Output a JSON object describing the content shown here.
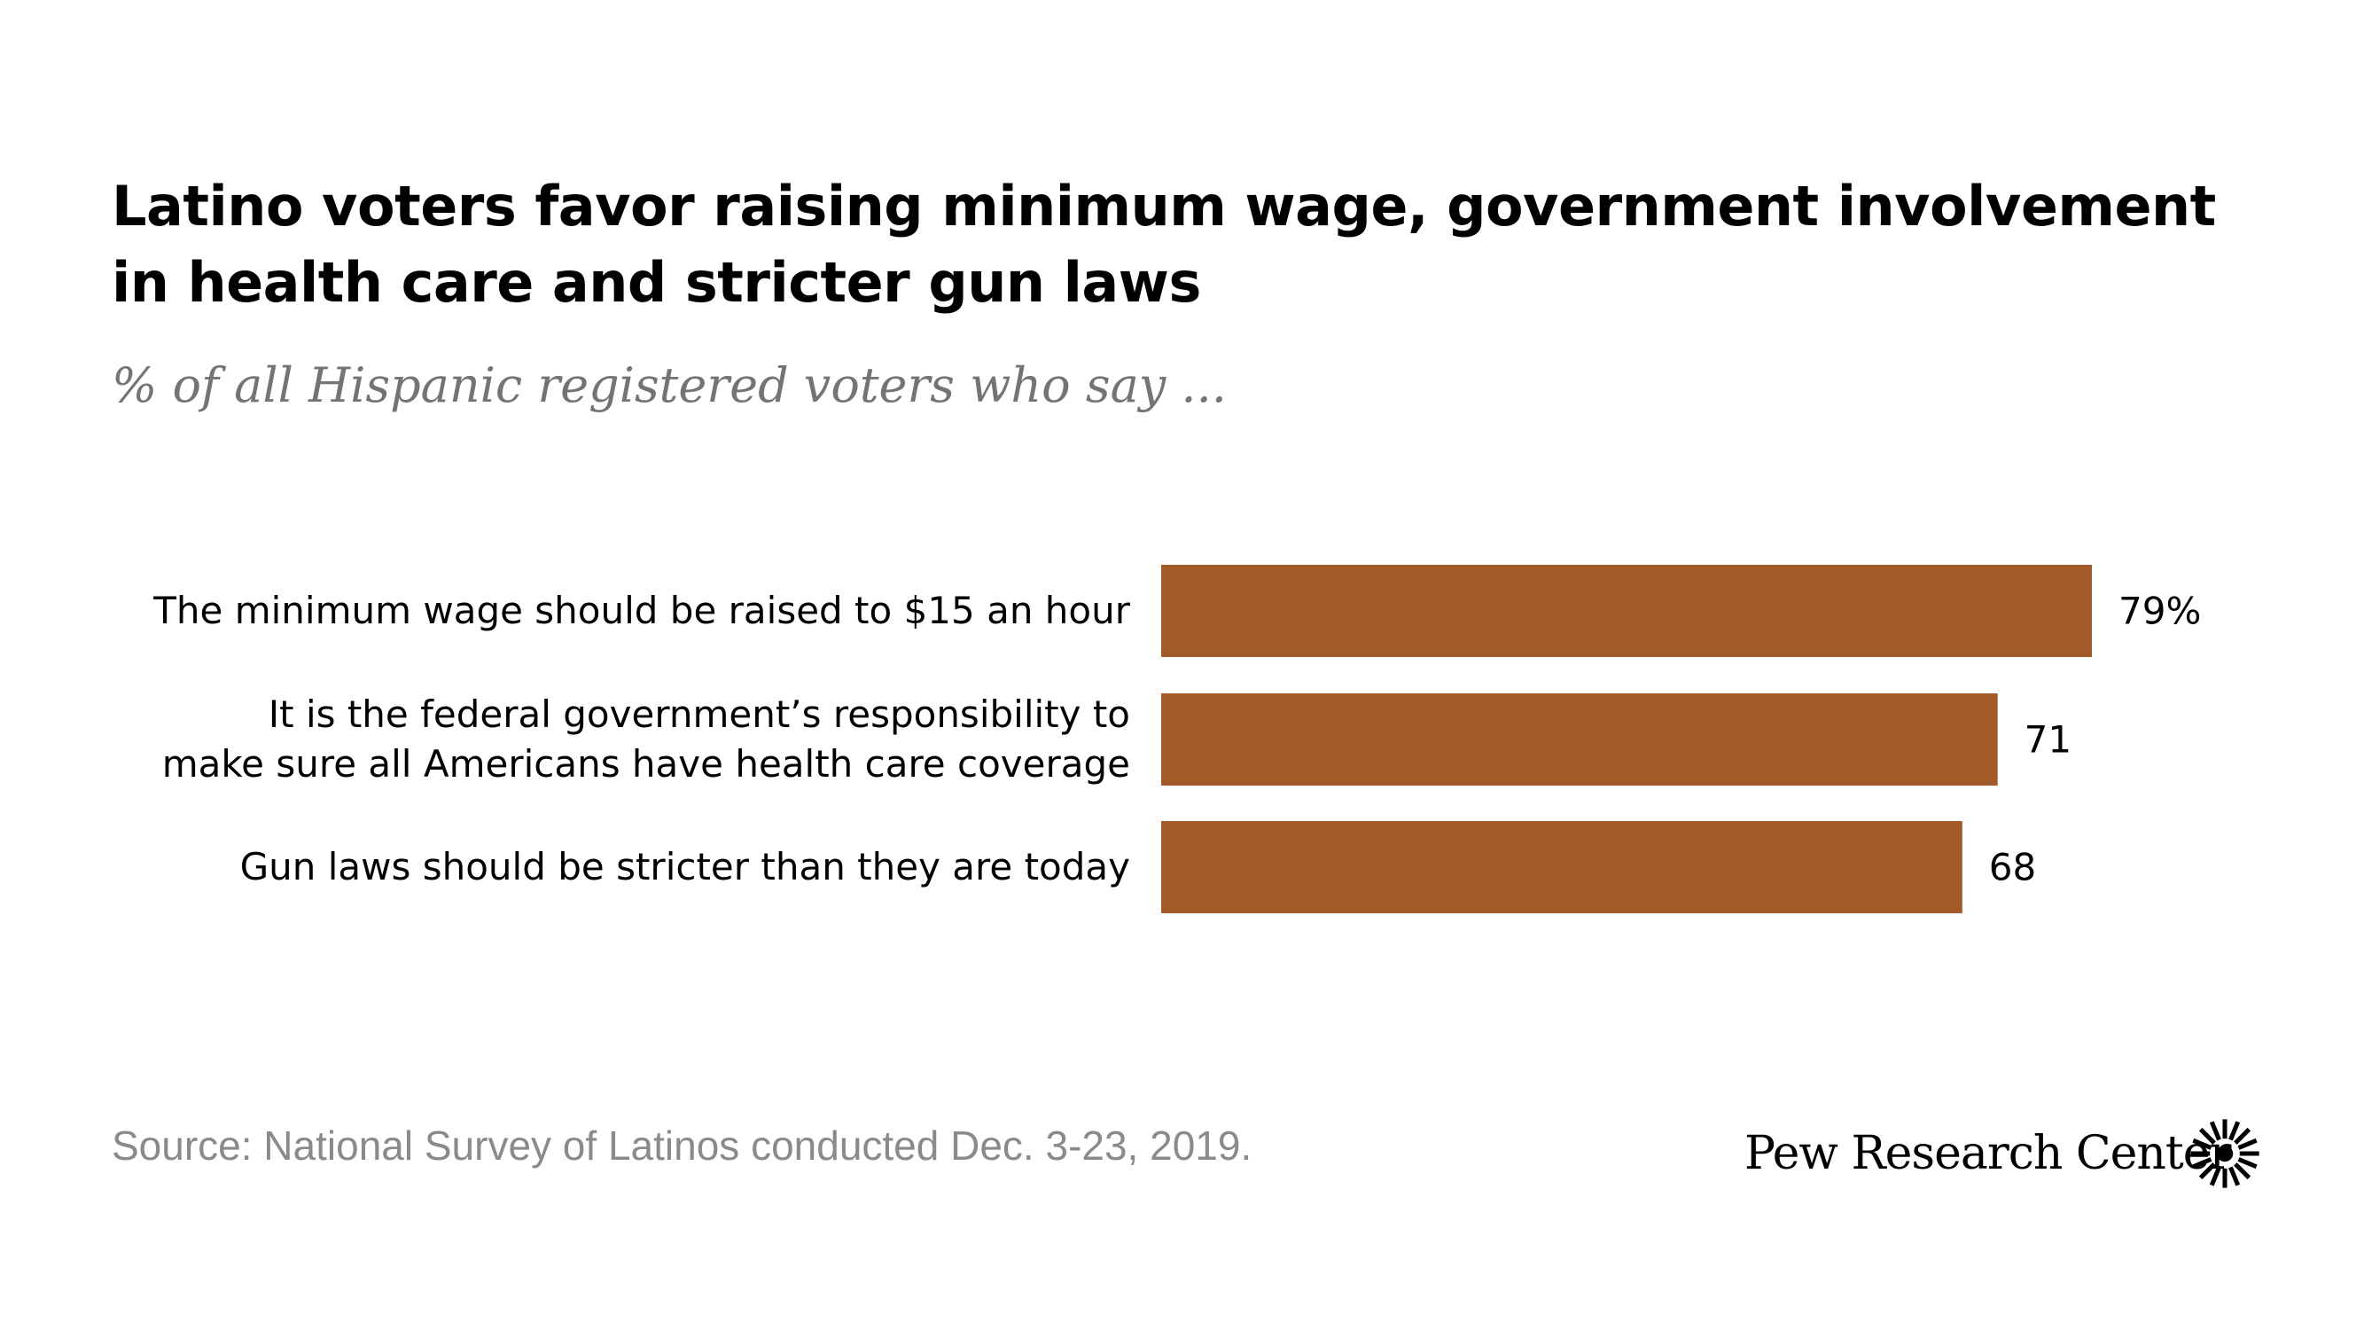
{
  "title": "Latino voters favor raising minimum wage, government involvement in health care and stricter gun laws",
  "subtitle": "% of all Hispanic registered voters who say  ...",
  "source": "Source: National Survey of Latinos conducted Dec. 3-23, 2019.",
  "brand": "Pew Research Center",
  "logo_icon": "pew-sunburst-logo-icon",
  "chart_data": {
    "type": "bar",
    "orientation": "horizontal",
    "bar_color": "#a25a28",
    "categories": [
      "The minimum wage should be raised to $15 an hour",
      "It is the federal government’s responsibility to make sure all Americans have health care coverage",
      "Gun laws should be stricter than they are today"
    ],
    "category_lines": [
      [
        "The minimum wage should be raised to $15 an hour"
      ],
      [
        "It is the federal government’s responsibility to",
        "make sure all Americans have health care coverage"
      ],
      [
        "Gun laws should be stricter than they are today"
      ]
    ],
    "values": [
      79,
      71,
      68
    ],
    "value_labels": [
      "79%",
      "71",
      "68"
    ],
    "xlim": [
      0,
      100
    ],
    "grid": false,
    "legend": "none"
  }
}
